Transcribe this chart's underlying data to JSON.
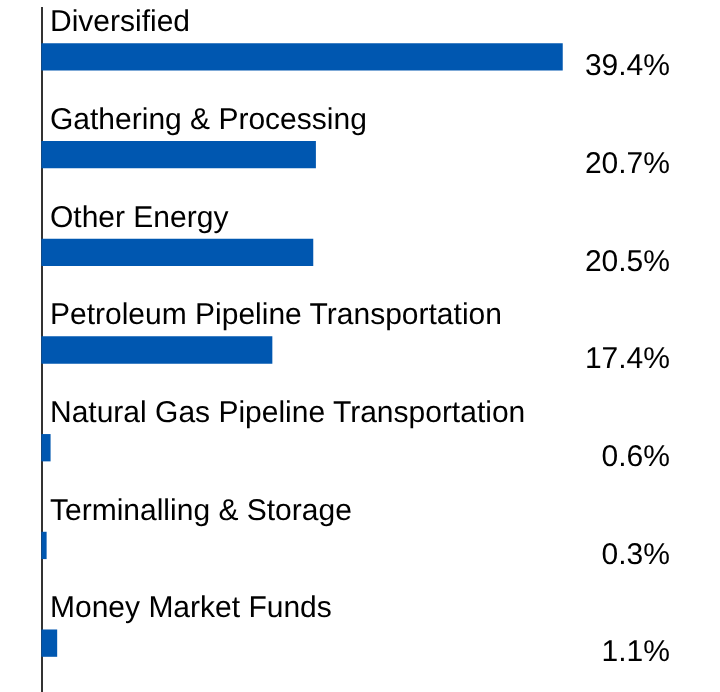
{
  "chart_data": {
    "type": "bar",
    "orientation": "horizontal",
    "categories": [
      "Diversified",
      "Gathering & Processing",
      "Other Energy",
      "Petroleum Pipeline Transportation",
      "Natural Gas Pipeline Transportation",
      "Terminalling & Storage",
      "Money Market Funds"
    ],
    "values": [
      39.4,
      20.7,
      20.5,
      17.4,
      0.6,
      0.3,
      1.1
    ],
    "value_labels": [
      "39.4%",
      "20.7%",
      "20.5%",
      "17.4%",
      "0.6%",
      "0.3%",
      "1.1%"
    ],
    "color": "#0057b0"
  }
}
